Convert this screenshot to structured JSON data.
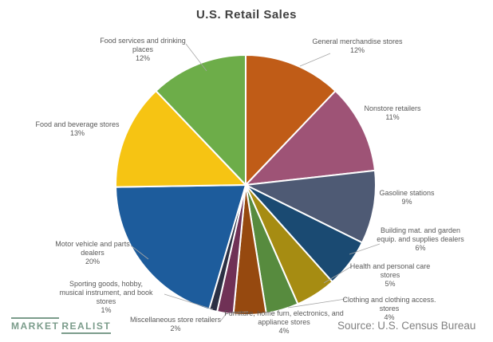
{
  "source": "Source: U.S. Census Bureau",
  "logo": {
    "word1": "MARKET",
    "word2": "REALIST",
    "color": "#7b9c8b"
  },
  "chart_data": {
    "type": "pie",
    "title": "U.S. Retail Sales",
    "legend_position": "labels-around-pie",
    "start_angle_deg": 0,
    "direction": "clockwise",
    "slices": [
      {
        "label": "General merchandise stores",
        "label_lines": [
          "General merchandise stores"
        ],
        "pct": "12%",
        "value": 12,
        "color": "#c05c17"
      },
      {
        "label": "Nonstore retailers",
        "label_lines": [
          "Nonstore retailers"
        ],
        "pct": "11%",
        "value": 11,
        "color": "#9e5376"
      },
      {
        "label": "Gasoline stations",
        "label_lines": [
          "Gasoline stations"
        ],
        "pct": "9%",
        "value": 9,
        "color": "#4e5a74"
      },
      {
        "label": "Building mat. and garden equip. and supplies dealers",
        "label_lines": [
          "Building mat. and garden",
          "equip. and supplies dealers"
        ],
        "pct": "6%",
        "value": 6,
        "color": "#1a4a72"
      },
      {
        "label": "Health and personal care stores",
        "label_lines": [
          "Health and personal care",
          "stores"
        ],
        "pct": "5%",
        "value": 5,
        "color": "#a68c12"
      },
      {
        "label": "Clothing and clothing access. stores",
        "label_lines": [
          "Clothing and clothing access.",
          "stores"
        ],
        "pct": "4%",
        "value": 4,
        "color": "#578b3e"
      },
      {
        "label": "Furniture, home furn, electronics, and appliance stores",
        "label_lines": [
          "Furniture, home furn, electronics, and",
          "appliance stores"
        ],
        "pct": "4%",
        "value": 4,
        "color": "#96490f"
      },
      {
        "label": "Miscellaneous store retailers",
        "label_lines": [
          "Miscellaneous store retailers"
        ],
        "pct": "2%",
        "value": 2,
        "color": "#703156"
      },
      {
        "label": "Sporting goods, hobby, musical instrument, and book stores",
        "label_lines": [
          "Sporting goods, hobby,",
          "musical instrument, and book",
          "stores"
        ],
        "pct": "1%",
        "value": 1,
        "color": "#2b3044"
      },
      {
        "label": "Motor vehicle and parts dealers",
        "label_lines": [
          "Motor vehicle and parts",
          "dealers"
        ],
        "pct": "20%",
        "value": 20,
        "color": "#1d5c9c"
      },
      {
        "label": "Food and beverage stores",
        "label_lines": [
          "Food and beverage stores"
        ],
        "pct": "13%",
        "value": 13,
        "color": "#f6c413"
      },
      {
        "label": "Food services and drinking places",
        "label_lines": [
          "Food services and drinking",
          "places"
        ],
        "pct": "12%",
        "value": 12,
        "color": "#6dad49"
      }
    ]
  }
}
